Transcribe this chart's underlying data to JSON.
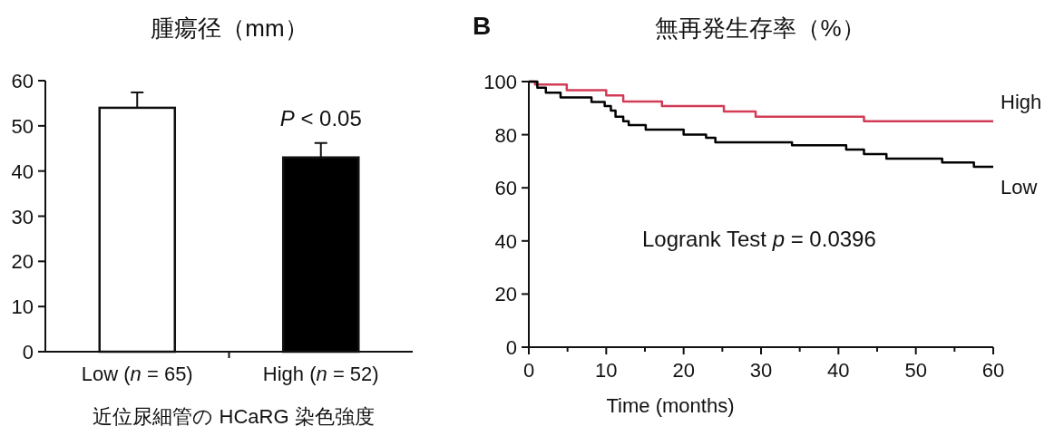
{
  "chart_data": [
    {
      "type": "bar",
      "title": "腫瘍径（mm）",
      "xlabel": "近位尿細管の HCaRG 染色強度",
      "categories": [
        "Low (*n* = 65)",
        "High (*n* = 52)"
      ],
      "values": [
        54,
        43
      ],
      "colors": [
        "#ffffff",
        "#000000"
      ],
      "errors": [
        [
          54,
          57.4
        ],
        [
          43,
          46.2
        ]
      ],
      "ylim": [
        0,
        60
      ],
      "yticks": [
        0,
        10,
        20,
        30,
        40,
        50,
        60
      ],
      "annotations": [
        "*P* < 0.05"
      ]
    },
    {
      "type": "step",
      "title": "無再発生存率（%）",
      "xlabel": "Time (months)",
      "series": [
        {
          "name": "High",
          "color": "#d23c57",
          "x": [
            0,
            0.8,
            4.9,
            10,
            12.2,
            17.2,
            25.2,
            29.3,
            43.3,
            60
          ],
          "values": [
            100,
            98.9,
            96.8,
            94.8,
            92.5,
            90.8,
            88.7,
            86.8,
            85.1,
            85.1
          ]
        },
        {
          "name": "Low",
          "color": "#000000",
          "x": [
            0,
            1.1,
            2.2,
            4.1,
            8.1,
            9.8,
            10.6,
            11.2,
            12.2,
            12.9,
            15.1,
            20,
            22.9,
            24.1,
            34,
            41,
            43.3,
            46.2,
            53.4,
            57.5,
            60
          ],
          "values": [
            100,
            97.7,
            95.8,
            94,
            92.3,
            90.8,
            89.1,
            86.8,
            85.1,
            83.6,
            81.9,
            80,
            78.8,
            77.1,
            76,
            74.4,
            72.7,
            71,
            69.5,
            67.9,
            67.9
          ]
        }
      ],
      "xlim": [
        0,
        60
      ],
      "xticks": [
        0,
        {
          "value": 5,
          "label": null
        },
        10,
        {
          "value": 15,
          "label": null
        },
        20,
        {
          "value": 25,
          "label": null
        },
        30,
        {
          "value": 35,
          "label": null
        },
        40,
        {
          "value": 45,
          "label": null
        },
        50,
        {
          "value": 55,
          "label": null
        },
        60
      ],
      "ylim": [
        0,
        100
      ],
      "yticks": [
        0,
        20,
        40,
        60,
        80,
        100
      ],
      "annotations": [
        "B",
        "Logrank Test *p* = 0.0396"
      ]
    }
  ]
}
